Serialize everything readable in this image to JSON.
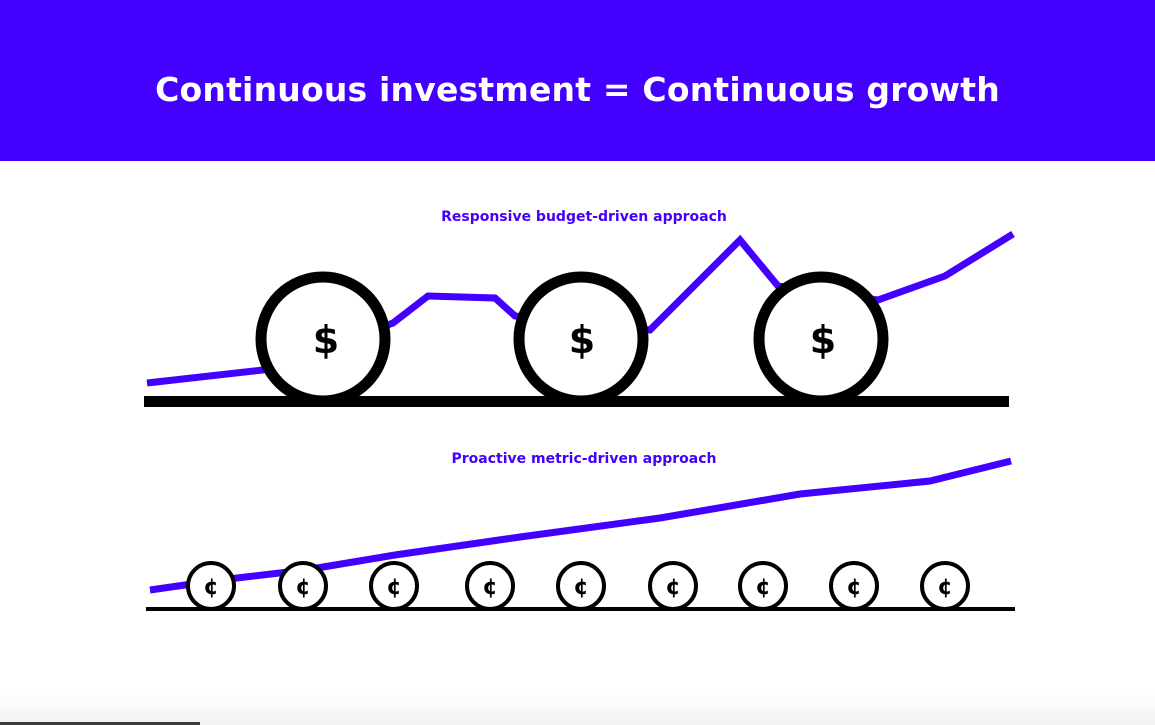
{
  "header": {
    "title": "Continuous investment = Continuous growth",
    "background_color": "#4400ff",
    "text_color": "#ffffff"
  },
  "diagram": {
    "accent_color": "#4400ff",
    "responsive": {
      "label": "Responsive budget-driven approach",
      "coin_symbol": "$",
      "coin_count": 3
    },
    "proactive": {
      "label": "Proactive metric-driven approach",
      "coin_symbol": "¢",
      "coin_count": 9
    }
  }
}
